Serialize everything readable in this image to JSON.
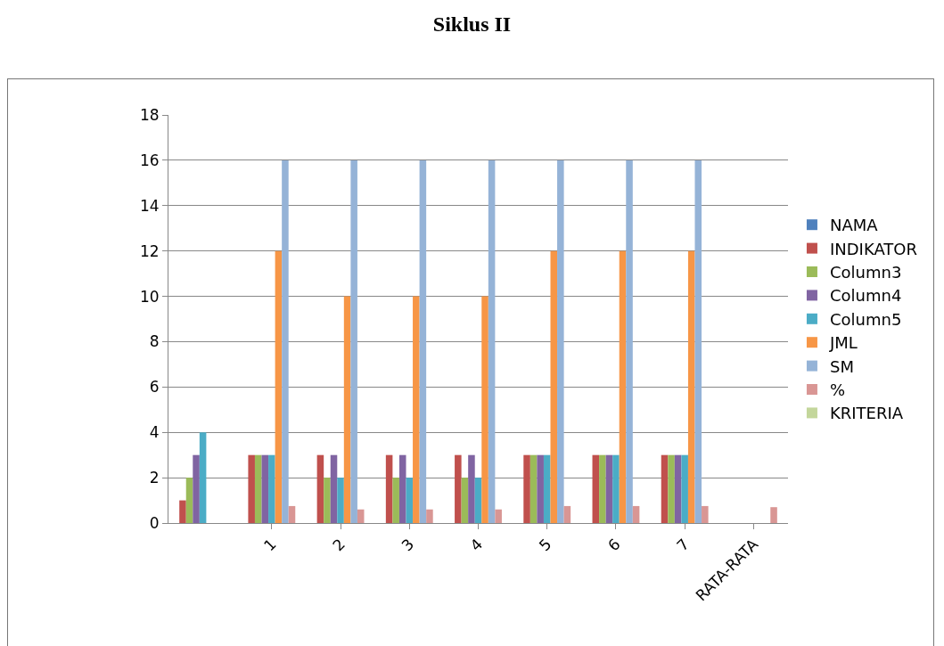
{
  "chart_data": {
    "type": "bar",
    "title": "Siklus II",
    "categories": [
      null,
      "1",
      "2",
      "3",
      "4",
      "5",
      "6",
      "7",
      "RATA-RATA"
    ],
    "series": [
      {
        "name": "NAMA",
        "color": "#4f81bd",
        "values": [
          null,
          null,
          null,
          null,
          null,
          null,
          null,
          null,
          null
        ]
      },
      {
        "name": "INDIKATOR",
        "color": "#c0504d",
        "values": [
          1,
          3,
          3,
          3,
          3,
          3,
          3,
          3,
          null
        ]
      },
      {
        "name": "Column3",
        "color": "#9bbb59",
        "values": [
          2,
          3,
          2,
          2,
          2,
          3,
          3,
          3,
          null
        ]
      },
      {
        "name": "Column4",
        "color": "#8064a2",
        "values": [
          3,
          3,
          3,
          3,
          3,
          3,
          3,
          3,
          null
        ]
      },
      {
        "name": "Column5",
        "color": "#4bacc6",
        "values": [
          4,
          3,
          2,
          2,
          2,
          3,
          3,
          3,
          null
        ]
      },
      {
        "name": "JML",
        "color": "#f79646",
        "values": [
          null,
          12,
          10,
          10,
          10,
          12,
          12,
          12,
          null
        ]
      },
      {
        "name": "SM",
        "color": "#95b3d7",
        "values": [
          null,
          16,
          16,
          16,
          16,
          16,
          16,
          16,
          null
        ]
      },
      {
        "name": "%",
        "color": "#d99694",
        "values": [
          null,
          0.75,
          0.6,
          0.6,
          0.6,
          0.75,
          0.75,
          0.75,
          0.7
        ]
      },
      {
        "name": "KRITERIA",
        "color": "#c3d69b",
        "values": [
          null,
          null,
          null,
          null,
          null,
          null,
          null,
          null,
          null
        ]
      }
    ],
    "ylim": [
      0,
      18
    ],
    "yticks": [
      0,
      2,
      4,
      6,
      8,
      10,
      12,
      14,
      16,
      18
    ],
    "grid": "y",
    "legend": "right"
  }
}
